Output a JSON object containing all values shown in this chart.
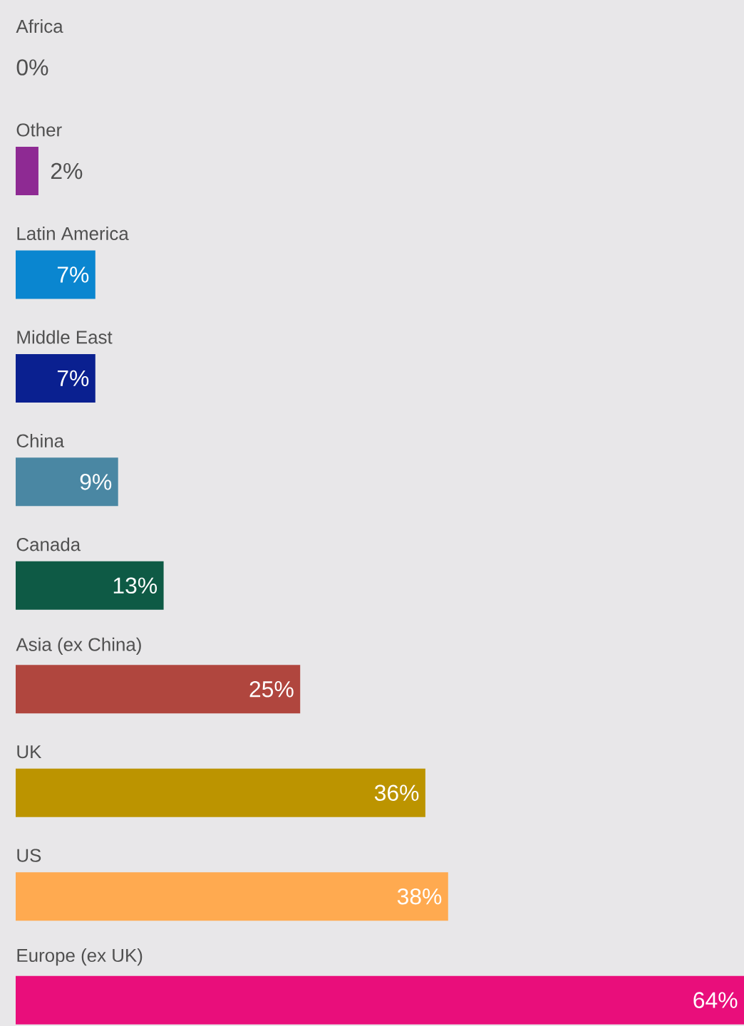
{
  "chart_data": {
    "type": "bar",
    "orientation": "horizontal",
    "categories": [
      "Africa",
      "Other",
      "Latin America",
      "Middle East",
      "China",
      "Canada",
      "Asia (ex China)",
      "UK",
      "US",
      "Europe (ex UK)"
    ],
    "values": [
      0,
      2,
      7,
      7,
      9,
      13,
      25,
      36,
      38,
      64
    ],
    "value_labels": [
      "0%",
      "2%",
      "7%",
      "7%",
      "9%",
      "13%",
      "25%",
      "36%",
      "38%",
      "64%"
    ],
    "colors": [
      "#9a9a9a",
      "#8e2a93",
      "#0a86d0",
      "#0a2090",
      "#4a87a3",
      "#0e5a45",
      "#b0463e",
      "#bc9400",
      "#ffaa50",
      "#e90e7b"
    ]
  }
}
